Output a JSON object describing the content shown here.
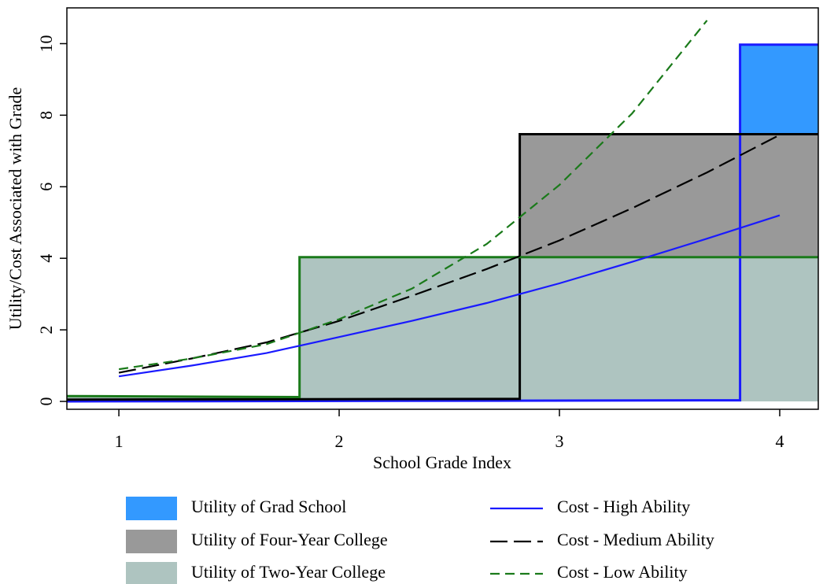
{
  "chart_data": {
    "type": "line",
    "x_label": "School Grade Index",
    "y_label": "Utility/Cost Associated with Grade",
    "xlim": [
      0.764,
      4.175
    ],
    "xticks": [
      1,
      2,
      3,
      4
    ],
    "ylim": [
      -0.22,
      11
    ],
    "yticks": [
      0,
      2,
      4,
      6,
      8,
      10
    ],
    "series": [
      {
        "name": "Utility of Grad School",
        "kind": "area",
        "color": "#3399ff",
        "line_color": "#1a1aff",
        "x": [
          0.764,
          3.82,
          3.82,
          4.175
        ],
        "values": [
          0,
          0.03,
          9.97,
          9.97
        ]
      },
      {
        "name": "Utility of Four-Year College",
        "kind": "area",
        "color": "#999999",
        "line_color": "#000000",
        "x": [
          0.764,
          2.82,
          2.82,
          4.175
        ],
        "values": [
          0.05,
          0.07,
          7.47,
          7.47
        ]
      },
      {
        "name": "Utility of Two-Year College",
        "kind": "area",
        "color": "#aec4c0",
        "line_color": "#1a7a1a",
        "x": [
          0.764,
          1.82,
          1.82,
          4.175
        ],
        "values": [
          0.15,
          0.12,
          4.03,
          4.03
        ]
      },
      {
        "name": "Cost - High Ability",
        "kind": "line",
        "color": "#1a1aff",
        "dash": "solid",
        "x": [
          1,
          1.33,
          1.67,
          2,
          2.33,
          2.67,
          3,
          3.33,
          3.67,
          4
        ],
        "values": [
          0.7,
          1.0,
          1.35,
          1.8,
          2.25,
          2.75,
          3.3,
          3.9,
          4.55,
          5.2
        ]
      },
      {
        "name": "Cost - Medium Ability",
        "kind": "line",
        "color": "#000000",
        "dash": "long-dash",
        "x": [
          1,
          1.33,
          1.67,
          2,
          2.33,
          2.67,
          3,
          3.33,
          3.67,
          4
        ],
        "values": [
          0.8,
          1.2,
          1.65,
          2.25,
          2.95,
          3.7,
          4.5,
          5.4,
          6.4,
          7.45
        ]
      },
      {
        "name": "Cost - Low Ability",
        "kind": "line",
        "color": "#1a7a1a",
        "dash": "dash",
        "x": [
          1,
          1.33,
          1.67,
          2,
          2.33,
          2.67,
          3,
          3.33,
          3.67,
          4
        ],
        "values": [
          0.9,
          1.2,
          1.6,
          2.3,
          3.15,
          4.4,
          6.05,
          8.05,
          10.65,
          null
        ]
      }
    ]
  }
}
